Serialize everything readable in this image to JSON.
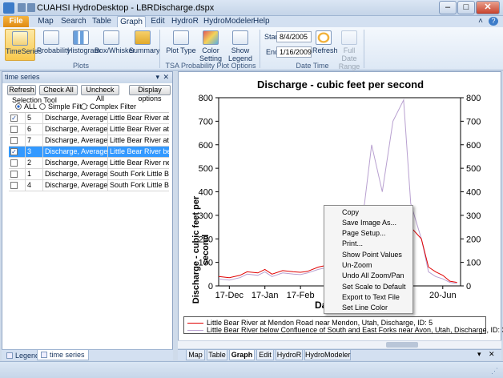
{
  "window": {
    "title": "CUAHSI HydroDesktop - LBRDischarge.dspx"
  },
  "menu": {
    "items": [
      "File",
      "Map",
      "Search",
      "Table",
      "Graph",
      "Edit",
      "HydroR",
      "HydroModeler",
      "Help"
    ]
  },
  "ribbon": {
    "plot_buttons": [
      "TimeSeries",
      "Probability",
      "Histogram",
      "Box/Whisker",
      "Summary"
    ],
    "plots_group": "Plots",
    "plot_type": "Plot Type",
    "color_setting": "Color Setting",
    "show_legend": "Show Legend",
    "tsa_group": "TSA  Probability Plot Options",
    "start_label": "Start",
    "start_value": "8/4/2005",
    "end_label": "End",
    "end_value": "1/16/2009",
    "refresh": "Refresh",
    "full_date_range": "Full Date Range",
    "date_group": "Date  Time"
  },
  "panel": {
    "title": "time series",
    "refresh": "Refresh",
    "check_all": "Check All",
    "uncheck_all": "Uncheck All",
    "display_options": "Display options",
    "selection_tool": "Selection Tool",
    "radio_all": "ALL",
    "radio_simple": "Simple Filter",
    "radio_complex": "Complex Filter",
    "rows": [
      {
        "checked": true,
        "id": "5",
        "variable": "Discharge, Average",
        "site": "Little Bear River at Mendon...",
        "selected": false
      },
      {
        "checked": false,
        "id": "6",
        "variable": "Discharge, Average",
        "site": "Little Bear River at Para...",
        "selected": false
      },
      {
        "checked": false,
        "id": "7",
        "variable": "Discharge, Average",
        "site": "Little Bear River at Para...",
        "selected": false
      },
      {
        "checked": true,
        "id": "3",
        "variable": "Discharge, Average",
        "site": "Little Bear River below ...",
        "selected": true
      },
      {
        "checked": false,
        "id": "2",
        "variable": "Discharge, Average",
        "site": "Little Bear River near ...",
        "selected": false
      },
      {
        "checked": false,
        "id": "1",
        "variable": "Discharge, Average",
        "site": "South Fork Little Bear ...",
        "selected": false
      },
      {
        "checked": false,
        "id": "4",
        "variable": "Discharge, Average",
        "site": "South Fork Little Bear ...",
        "selected": false
      }
    ],
    "tab_legend": "Legend",
    "tab_time_series": "time series"
  },
  "context_menu": {
    "items": [
      "Copy",
      "Save Image As...",
      "Page Setup...",
      "Print...",
      "Show Point Values",
      "Un-Zoom",
      "Undo All Zoom/Pan",
      "Set Scale to Default",
      "Export to Text File",
      "Set Line Color"
    ]
  },
  "doc_tabs": [
    "Map",
    "Table",
    "Graph",
    "Edit",
    "HydroR",
    "HydroModeler"
  ],
  "chart_data": {
    "type": "line",
    "title": "Discharge - cubic feet per second",
    "ylabel": "Discharge - cubic feet per second",
    "xlabel_visible": "Da",
    "ylim": [
      0,
      800
    ],
    "y_ticks": [
      "0",
      "100",
      "200",
      "300",
      "400",
      "500",
      "600",
      "700",
      "800"
    ],
    "x_tick_labels": [
      "17-Dec",
      "17-Jan",
      "17-Feb",
      "20-Jun"
    ],
    "x_tick_positions": [
      0,
      1,
      2,
      6
    ],
    "x_range": [
      -0.3,
      6.5
    ],
    "grid": false,
    "legend_position": "bottom",
    "series": [
      {
        "name": "Little Bear River at Mendon Road near Mendon, Utah, Discharge, ID: 5",
        "color": "#e00000",
        "x": [
          -0.3,
          0,
          0.3,
          0.5,
          0.8,
          1.0,
          1.2,
          1.5,
          1.8,
          2.0,
          2.2,
          2.5,
          2.8,
          3.0,
          3.2,
          3.5,
          3.8,
          4.0,
          4.3,
          4.6,
          4.9,
          5.1,
          5.4,
          5.6,
          5.8,
          6.0,
          6.2,
          6.4
        ],
        "y": [
          40,
          35,
          45,
          60,
          55,
          70,
          50,
          65,
          60,
          58,
          62,
          80,
          90,
          85,
          110,
          140,
          120,
          150,
          150,
          140,
          280,
          250,
          200,
          80,
          60,
          45,
          20,
          15
        ]
      },
      {
        "name": "Little Bear River below Confluence of South and East Forks near Avon, Utah, Discharge, ID: 3",
        "color": "#b8a0d0",
        "x": [
          -0.3,
          0,
          0.3,
          0.5,
          0.8,
          1.0,
          1.2,
          1.5,
          1.8,
          2.0,
          2.2,
          2.5,
          2.8,
          3.0,
          3.2,
          3.5,
          3.8,
          4.0,
          4.3,
          4.6,
          4.9,
          5.1,
          5.4,
          5.6,
          5.8,
          6.0,
          6.2,
          6.4
        ],
        "y": [
          30,
          25,
          35,
          50,
          45,
          60,
          40,
          55,
          50,
          48,
          55,
          70,
          80,
          75,
          100,
          130,
          350,
          600,
          400,
          700,
          790,
          350,
          200,
          60,
          40,
          30,
          15,
          10
        ]
      }
    ]
  }
}
